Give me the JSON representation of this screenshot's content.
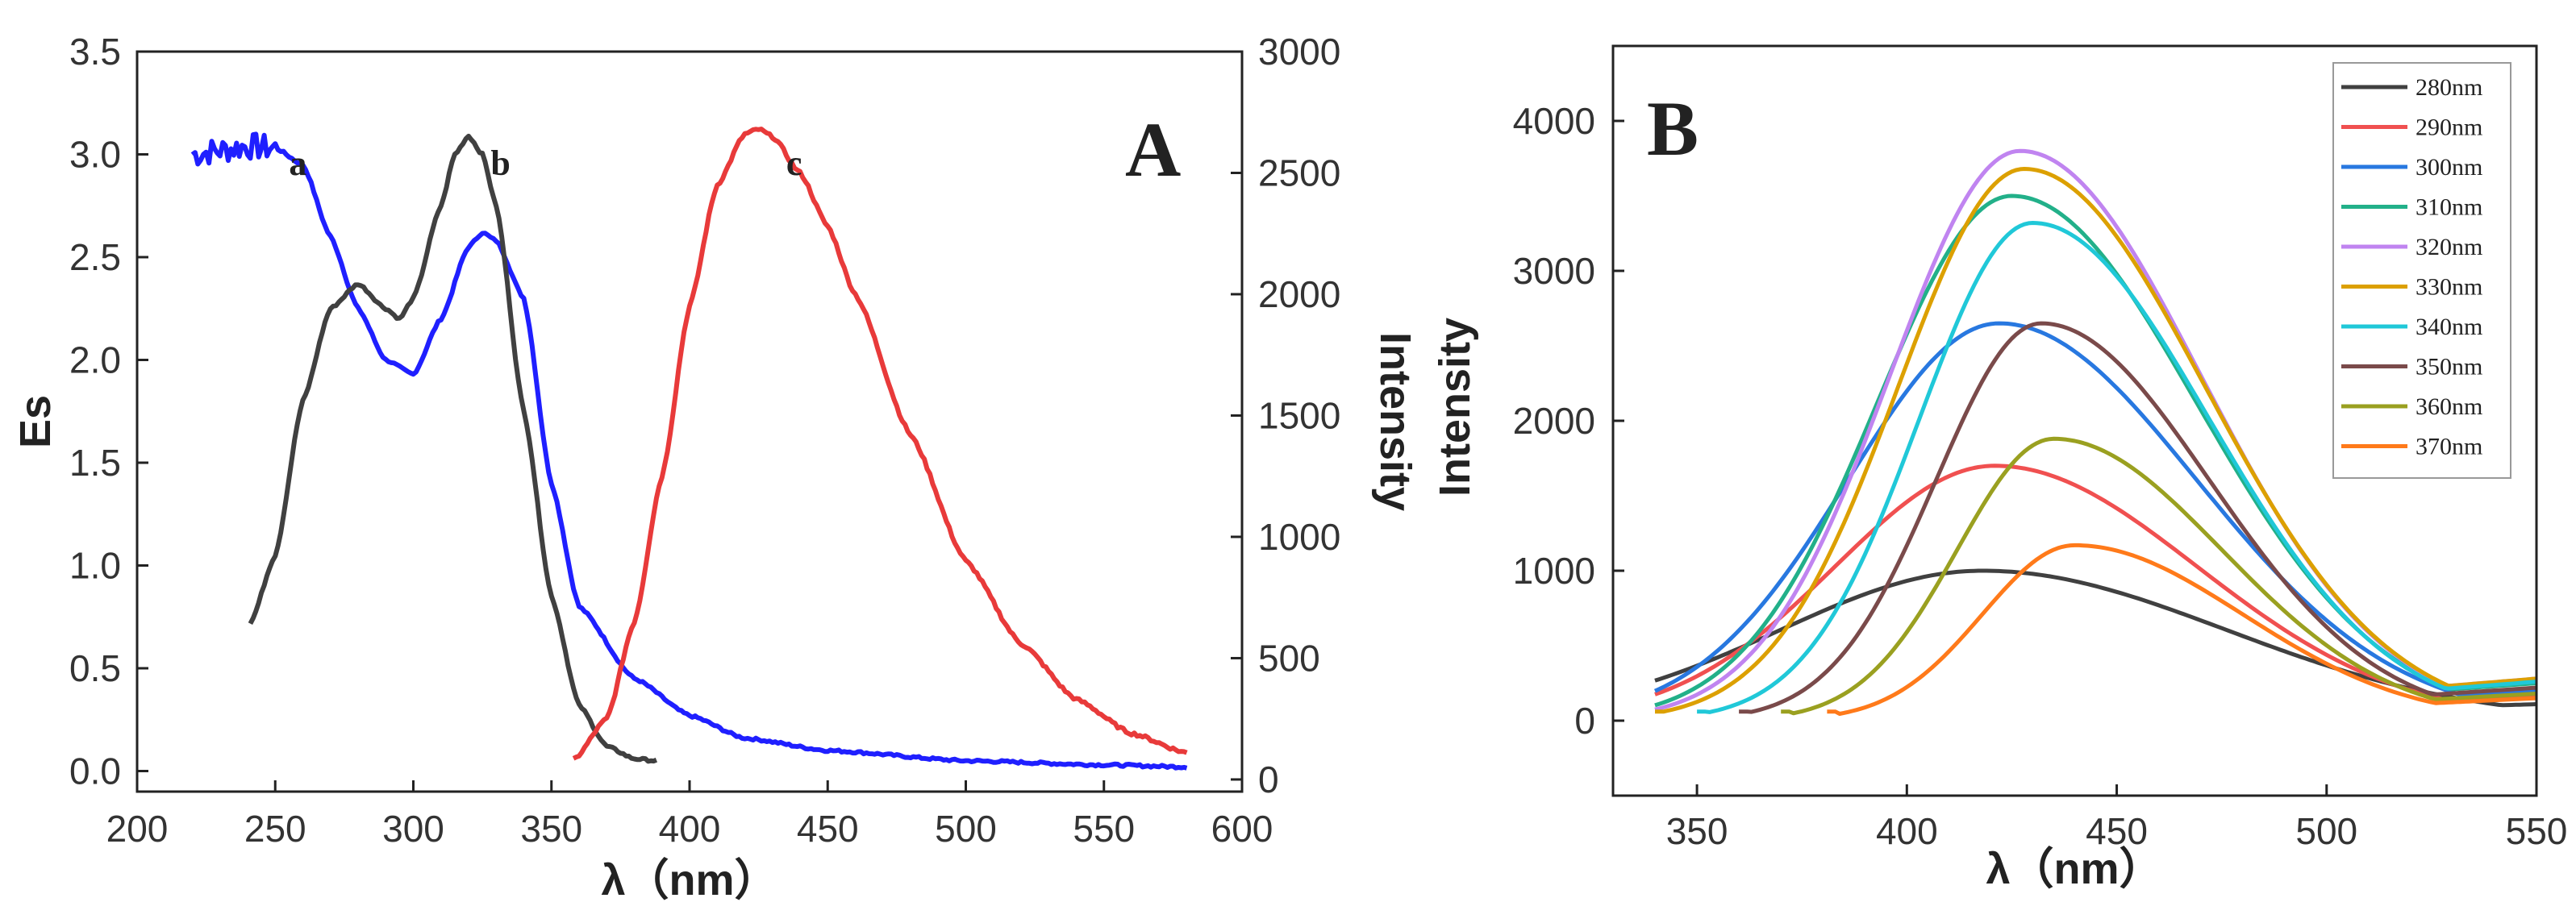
{
  "chart_data": [
    {
      "type": "line",
      "panel_label": "A",
      "xlabel": "λ（nm）",
      "ylabel_left": "Es",
      "ylabel_right": "Intensity",
      "xlim": [
        200,
        600
      ],
      "ylim_left": [
        -0.1,
        3.5
      ],
      "ylim_right": [
        -50,
        3000
      ],
      "x_ticks": [
        "200",
        "250",
        "300",
        "350",
        "400",
        "450",
        "500",
        "550",
        "600"
      ],
      "y_left_ticks": [
        "0.0",
        "0.5",
        "1.0",
        "1.5",
        "2.0",
        "2.5",
        "3.0",
        "3.5"
      ],
      "y_right_ticks": [
        "0",
        "500",
        "1000",
        "1500",
        "2000",
        "2500",
        "3000"
      ],
      "series": [
        {
          "name": "a",
          "color": "#1f1fff",
          "axis": "left",
          "noisy_until": 250,
          "x": [
            220,
            230,
            240,
            250,
            260,
            270,
            280,
            290,
            300,
            310,
            320,
            325,
            330,
            340,
            350,
            360,
            380,
            400,
            420,
            450,
            500,
            550,
            580
          ],
          "y": [
            3.0,
            3.02,
            3.04,
            3.03,
            2.95,
            2.6,
            2.25,
            2.0,
            1.93,
            2.2,
            2.55,
            2.62,
            2.58,
            2.3,
            1.4,
            0.8,
            0.45,
            0.27,
            0.16,
            0.1,
            0.05,
            0.03,
            0.02
          ]
        },
        {
          "name": "b",
          "color": "#404040",
          "axis": "left",
          "x": [
            241,
            250,
            260,
            270,
            280,
            290,
            295,
            300,
            310,
            315,
            320,
            325,
            330,
            340,
            350,
            360,
            370,
            380,
            388
          ],
          "y": [
            0.72,
            1.05,
            1.8,
            2.25,
            2.37,
            2.25,
            2.2,
            2.3,
            2.75,
            3.0,
            3.09,
            3.0,
            2.75,
            1.75,
            0.85,
            0.32,
            0.12,
            0.06,
            0.05
          ]
        },
        {
          "name": "c",
          "color": "#e83a3a",
          "axis": "right",
          "x": [
            358,
            370,
            380,
            390,
            400,
            410,
            420,
            425,
            430,
            440,
            450,
            460,
            480,
            500,
            520,
            540,
            560,
            580
          ],
          "y": [
            80,
            250,
            650,
            1250,
            1950,
            2450,
            2660,
            2680,
            2650,
            2500,
            2280,
            2000,
            1420,
            900,
            560,
            330,
            190,
            110
          ]
        }
      ],
      "annotations": [
        {
          "text": "a",
          "x": 255,
          "y": 2.9
        },
        {
          "text": "b",
          "x": 328,
          "y": 2.9
        },
        {
          "text": "c",
          "x": 435,
          "y": 2.9
        }
      ]
    },
    {
      "type": "line",
      "panel_label": "B",
      "xlabel": "λ（nm）",
      "ylabel": "Intensity",
      "xlim": [
        330,
        550
      ],
      "ylim": [
        -500,
        4500
      ],
      "x_ticks": [
        "350",
        "400",
        "450",
        "500",
        "550"
      ],
      "y_ticks": [
        "0",
        "1000",
        "2000",
        "3000",
        "4000"
      ],
      "legend_position": "top-right",
      "series": [
        {
          "name": "280nm",
          "color": "#404040",
          "start": 340,
          "peak_x": 418,
          "peak_y": 1000,
          "sigma_left": 48,
          "sigma_right": 58,
          "end_y": 110
        },
        {
          "name": "290nm",
          "color": "#f05050",
          "start": 340,
          "peak_x": 421,
          "peak_y": 1700,
          "sigma_left": 38,
          "sigma_right": 48,
          "end_y": 160
        },
        {
          "name": "300nm",
          "color": "#2878e0",
          "start": 340,
          "peak_x": 422,
          "peak_y": 2650,
          "sigma_left": 36,
          "sigma_right": 47,
          "end_y": 200
        },
        {
          "name": "310nm",
          "color": "#22b089",
          "start": 340,
          "peak_x": 425,
          "peak_y": 3500,
          "sigma_left": 32,
          "sigma_right": 44,
          "end_y": 250
        },
        {
          "name": "320nm",
          "color": "#c084f0",
          "start": 340,
          "peak_x": 427,
          "peak_y": 3800,
          "sigma_left": 31,
          "sigma_right": 43,
          "end_y": 280
        },
        {
          "name": "330nm",
          "color": "#dca000",
          "start": 340,
          "peak_x": 428,
          "peak_y": 3680,
          "sigma_left": 30,
          "sigma_right": 43,
          "end_y": 280
        },
        {
          "name": "340nm",
          "color": "#20c8d8",
          "start": 350,
          "peak_x": 430,
          "peak_y": 3320,
          "sigma_left": 27,
          "sigma_right": 42,
          "end_y": 260
        },
        {
          "name": "350nm",
          "color": "#7a4a4a",
          "start": 360,
          "peak_x": 432,
          "peak_y": 2650,
          "sigma_left": 25,
          "sigma_right": 40,
          "end_y": 220
        },
        {
          "name": "360nm",
          "color": "#9aa020",
          "start": 370,
          "peak_x": 435,
          "peak_y": 1880,
          "sigma_left": 23,
          "sigma_right": 40,
          "end_y": 180
        },
        {
          "name": "370nm",
          "color": "#ff7a1a",
          "start": 381,
          "peak_x": 440,
          "peak_y": 1170,
          "sigma_left": 22,
          "sigma_right": 40,
          "end_y": 150
        }
      ]
    }
  ]
}
